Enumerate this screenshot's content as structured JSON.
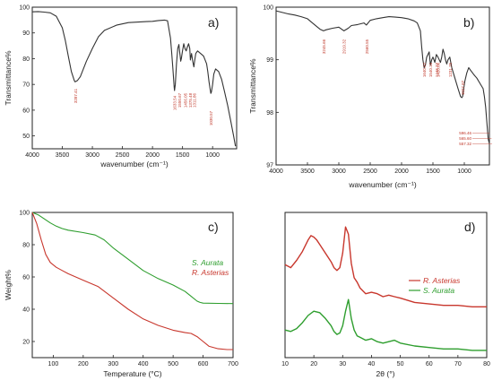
{
  "chart_data": [
    {
      "type": "line",
      "panel_label": "a)",
      "xlabel": "wavenumber (cm⁻¹)",
      "ylabel": "Transmittance%",
      "xlim": [
        4000,
        600
      ],
      "ylim": [
        45,
        100
      ],
      "x_ticks": [
        "4000",
        "3500",
        "3000",
        "2500",
        "2000",
        "1500",
        "1000"
      ],
      "y_ticks": [
        "100",
        "90",
        "80",
        "70",
        "60",
        "50"
      ],
      "series": [
        {
          "color": "#333333",
          "x": [
            4000,
            3900,
            3800,
            3700,
            3600,
            3500,
            3450,
            3400,
            3350,
            3300,
            3287,
            3250,
            3200,
            3150,
            3100,
            3000,
            2900,
            2800,
            2600,
            2400,
            2200,
            2100,
            2000,
            1900,
            1800,
            1750,
            1700,
            1680,
            1660,
            1640,
            1633,
            1620,
            1600,
            1580,
            1560,
            1550,
            1540,
            1530,
            1520,
            1500,
            1480,
            1460,
            1440,
            1420,
            1400,
            1380,
            1370,
            1350,
            1330,
            1311,
            1300,
            1280,
            1250,
            1200,
            1150,
            1100,
            1080,
            1060,
            1040,
            1030,
            1020,
            1000,
            980,
            950,
            900,
            850,
            800,
            750,
            700,
            650,
            620
          ],
          "y": [
            98.2,
            98.3,
            98.1,
            97.8,
            96.5,
            92,
            87,
            81,
            75,
            71.5,
            71.0,
            71.5,
            73,
            76,
            79,
            84,
            88.5,
            91,
            93,
            94,
            94.3,
            94.4,
            94.5,
            94.8,
            95,
            94.7,
            88,
            82,
            76,
            69,
            67.6,
            70,
            78,
            84,
            85.5,
            83,
            81,
            79,
            80,
            83,
            85.8,
            84,
            83,
            84.5,
            85.8,
            84,
            79.5,
            82,
            79,
            76.8,
            79,
            82,
            83,
            82,
            81,
            78,
            75,
            71,
            68,
            66.5,
            67,
            70,
            74,
            76,
            75,
            72,
            67,
            62,
            56,
            50,
            46
          ]
        }
      ],
      "annotations": [
        "3287.41",
        "1633.54",
        "1550.67",
        "1456.05",
        "1375.48",
        "1311.86",
        "1030.57"
      ]
    },
    {
      "type": "line",
      "panel_label": "b)",
      "xlabel": "wavenumber (cm⁻¹)",
      "ylabel": "Transmittance%",
      "xlim": [
        4000,
        600
      ],
      "ylim": [
        97,
        100
      ],
      "x_ticks": [
        "4000",
        "3500",
        "3000",
        "2500",
        "2000",
        "1500",
        "1000"
      ],
      "y_ticks": [
        "100",
        "99",
        "98",
        "97"
      ],
      "series": [
        {
          "color": "#333333",
          "x": [
            4000,
            3900,
            3800,
            3700,
            3600,
            3500,
            3400,
            3300,
            3245,
            3200,
            3100,
            3000,
            2919,
            2850,
            2800,
            2700,
            2600,
            2560,
            2500,
            2400,
            2300,
            2200,
            2100,
            2000,
            1900,
            1800,
            1750,
            1700,
            1680,
            1660,
            1640,
            1620,
            1600,
            1560,
            1540,
            1520,
            1500,
            1470,
            1446,
            1420,
            1400,
            1380,
            1360,
            1340,
            1320,
            1300,
            1280,
            1260,
            1231,
            1200,
            1150,
            1100,
            1060,
            1040,
            1027,
            1010,
            990,
            960,
            930,
            900,
            850,
            800,
            750,
            700,
            680,
            660,
            640,
            620,
            600
          ],
          "y": [
            99.93,
            99.9,
            99.87,
            99.85,
            99.82,
            99.78,
            99.68,
            99.58,
            99.55,
            99.57,
            99.6,
            99.62,
            99.55,
            99.6,
            99.65,
            99.67,
            99.7,
            99.66,
            99.75,
            99.78,
            99.8,
            99.82,
            99.81,
            99.8,
            99.78,
            99.74,
            99.7,
            99.55,
            99.25,
            99.0,
            98.85,
            98.9,
            99.05,
            99.15,
            98.9,
            99.0,
            99.05,
            98.95,
            99.1,
            99.05,
            99.0,
            98.95,
            99.05,
            99.2,
            99.12,
            99.0,
            98.92,
            99.0,
            99.05,
            98.85,
            98.65,
            98.45,
            98.3,
            98.28,
            98.3,
            98.45,
            98.6,
            98.75,
            98.85,
            98.8,
            98.72,
            98.65,
            98.55,
            98.45,
            98.3,
            98.1,
            97.8,
            97.5,
            97.4
          ]
        }
      ],
      "annotations": [
        "3245.66",
        "2919.32",
        "2560.55",
        "1640.42",
        "1540.16",
        "1446.27",
        "1420.06",
        "1231.75",
        "1027.87",
        "596.46",
        "565.60",
        "557.32"
      ]
    },
    {
      "type": "line",
      "panel_label": "c)",
      "xlabel": "Temperature (°C)",
      "ylabel": "Weight%",
      "xlim": [
        30,
        700
      ],
      "ylim": [
        10,
        100
      ],
      "x_ticks": [
        "100",
        "200",
        "300",
        "400",
        "500",
        "600",
        "700"
      ],
      "y_ticks": [
        "100",
        "80",
        "60",
        "40",
        "20"
      ],
      "legend_position": "right",
      "series": [
        {
          "name": "S. Aurata",
          "color": "#2e9e2e",
          "x": [
            30,
            50,
            70,
            90,
            110,
            130,
            150,
            200,
            240,
            270,
            300,
            350,
            400,
            450,
            500,
            540,
            560,
            580,
            590,
            600,
            650,
            700
          ],
          "y": [
            100,
            98.5,
            96,
            93.5,
            91.5,
            90,
            89,
            87.5,
            86,
            83,
            78,
            71,
            64,
            59,
            55,
            51,
            48,
            45,
            44.2,
            43.8,
            43.6,
            43.5
          ]
        },
        {
          "name": "R. Asterias",
          "color": "#c8372d",
          "x": [
            30,
            45,
            60,
            75,
            90,
            110,
            130,
            150,
            200,
            250,
            300,
            350,
            400,
            450,
            500,
            540,
            560,
            580,
            600,
            620,
            650,
            680,
            700
          ],
          "y": [
            100,
            93,
            83,
            74,
            69,
            66,
            64,
            62,
            58,
            54,
            47,
            40,
            34,
            30,
            27,
            25.5,
            25,
            23,
            20,
            17,
            15.5,
            15,
            15
          ]
        }
      ]
    },
    {
      "type": "line",
      "panel_label": "d)",
      "xlabel": "2θ (°)",
      "ylabel": "",
      "xlim": [
        10,
        80
      ],
      "x_ticks": [
        "10",
        "20",
        "30",
        "40",
        "50",
        "60",
        "70",
        "80"
      ],
      "legend_position": "right",
      "series": [
        {
          "name": "R. Asterias",
          "color": "#c8372d",
          "x": [
            10,
            12,
            14,
            16,
            18,
            19,
            20,
            21,
            22,
            24,
            26,
            27,
            28,
            29,
            30,
            31,
            32,
            33,
            34,
            35,
            36,
            38,
            40,
            42,
            44,
            46,
            48,
            50,
            55,
            60,
            65,
            70,
            75,
            80
          ],
          "y": [
            0.64,
            0.62,
            0.67,
            0.73,
            0.81,
            0.84,
            0.83,
            0.81,
            0.78,
            0.72,
            0.66,
            0.62,
            0.6,
            0.62,
            0.72,
            0.9,
            0.85,
            0.65,
            0.55,
            0.52,
            0.48,
            0.44,
            0.45,
            0.44,
            0.42,
            0.43,
            0.42,
            0.41,
            0.38,
            0.37,
            0.36,
            0.36,
            0.35,
            0.35
          ]
        },
        {
          "name": "S. Aurata",
          "color": "#2e9e2e",
          "x": [
            10,
            12,
            14,
            16,
            18,
            20,
            22,
            24,
            26,
            27,
            28,
            29,
            30,
            31,
            32,
            33,
            34,
            35,
            36,
            38,
            40,
            42,
            44,
            46,
            48,
            50,
            55,
            60,
            65,
            70,
            75,
            80
          ],
          "y": [
            0.19,
            0.18,
            0.2,
            0.24,
            0.29,
            0.32,
            0.31,
            0.27,
            0.22,
            0.18,
            0.16,
            0.17,
            0.22,
            0.32,
            0.4,
            0.27,
            0.19,
            0.15,
            0.14,
            0.12,
            0.13,
            0.11,
            0.1,
            0.11,
            0.12,
            0.1,
            0.08,
            0.07,
            0.06,
            0.06,
            0.05,
            0.05
          ]
        }
      ]
    }
  ]
}
